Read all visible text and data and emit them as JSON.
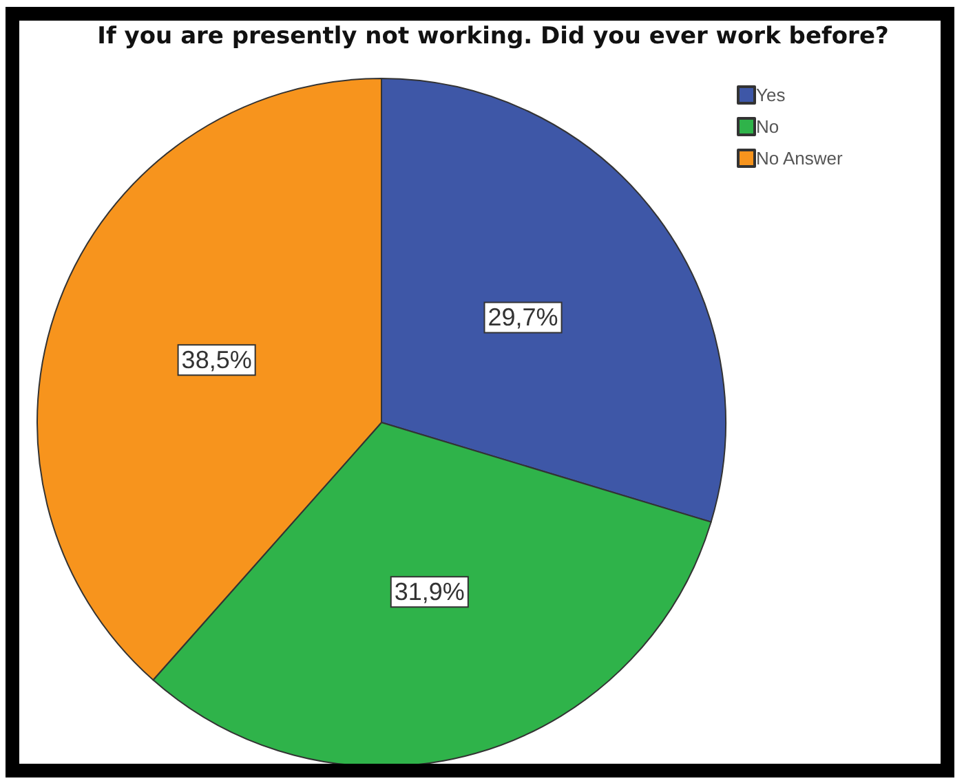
{
  "chart_data": {
    "type": "pie",
    "title": "If you are presently not working. Did you ever work before?",
    "categories": [
      "Yes",
      "No",
      "No Answer"
    ],
    "values": [
      29.7,
      31.9,
      38.5
    ],
    "colors": [
      "#3e57a7",
      "#2fb34a",
      "#f7941d"
    ],
    "value_labels": [
      "29,7%",
      "31,9%",
      "38,5%"
    ],
    "legend": "top right"
  }
}
